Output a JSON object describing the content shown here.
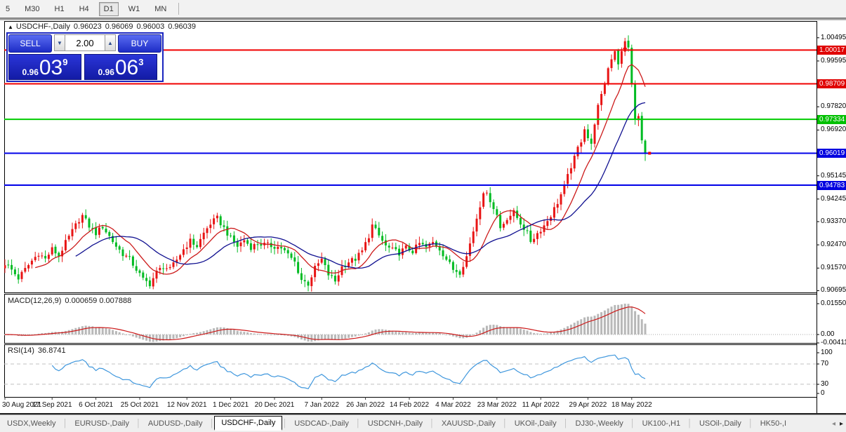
{
  "toolbar": {
    "timeframes": [
      "5",
      "M30",
      "H1",
      "H4",
      "D1",
      "W1",
      "MN"
    ],
    "active": "D1"
  },
  "chart": {
    "header": {
      "collapse_glyph": "▲",
      "title": "USDCHF-,Daily",
      "open": "0.96023",
      "high": "0.96069",
      "low": "0.96003",
      "close": "0.96039"
    },
    "trade_panel": {
      "sell_label": "SELL",
      "buy_label": "BUY",
      "volume": "2.00",
      "volume_down_glyph": "▼",
      "volume_up_glyph": "▲",
      "sell_price": {
        "prefix": "0.96",
        "big": "03",
        "sup": "9"
      },
      "buy_price": {
        "prefix": "0.96",
        "big": "06",
        "sup": "3"
      }
    }
  },
  "chart_data": {
    "type": "candlestick",
    "symbol": "USDCHF-",
    "timeframe": "Daily",
    "bar_count": 191,
    "up_color": "#e81414",
    "down_color": "#00bb22",
    "price_axis_ticks": [
      "1.00495",
      "0.99595",
      "0.97820",
      "0.96920",
      "0.95145",
      "0.94245",
      "0.93370",
      "0.92470",
      "0.91570",
      "0.90695"
    ],
    "price_badges": [
      {
        "value": "1.00017",
        "price": 1.00017,
        "color": "#e00000"
      },
      {
        "value": "0.98709",
        "price": 0.98709,
        "color": "#e00000"
      },
      {
        "value": "0.97334",
        "price": 0.97334,
        "color": "#00c000"
      },
      {
        "value": "0.96019",
        "price": 0.96019,
        "color": "#0000e0"
      },
      {
        "value": "0.94783",
        "price": 0.94783,
        "color": "#0000e0"
      }
    ],
    "hlines": [
      {
        "price": 1.00017,
        "color": "#f00000"
      },
      {
        "price": 0.98709,
        "color": "#f00000"
      },
      {
        "price": 0.97334,
        "color": "#00cc00"
      },
      {
        "price": 0.96019,
        "color": "#0000e8"
      },
      {
        "price": 0.94783,
        "color": "#0000e8"
      }
    ],
    "ma_fast": {
      "period": 10,
      "color": "#cc1a1a"
    },
    "ma_slow": {
      "period": 22,
      "color": "#101090"
    },
    "close_anchors": [
      [
        0,
        0.9175
      ],
      [
        2,
        0.915
      ],
      [
        4,
        0.9118
      ],
      [
        6,
        0.9152
      ],
      [
        8,
        0.9185
      ],
      [
        10,
        0.9215
      ],
      [
        12,
        0.9192
      ],
      [
        14,
        0.923
      ],
      [
        16,
        0.9205
      ],
      [
        18,
        0.9255
      ],
      [
        20,
        0.93
      ],
      [
        22,
        0.9345
      ],
      [
        23,
        0.936
      ],
      [
        25,
        0.932
      ],
      [
        27,
        0.9292
      ],
      [
        29,
        0.9318
      ],
      [
        31,
        0.928
      ],
      [
        33,
        0.9242
      ],
      [
        35,
        0.9212
      ],
      [
        37,
        0.9192
      ],
      [
        39,
        0.9152
      ],
      [
        41,
        0.9112
      ],
      [
        43,
        0.9096
      ],
      [
        45,
        0.914
      ],
      [
        47,
        0.9165
      ],
      [
        49,
        0.915
      ],
      [
        51,
        0.919
      ],
      [
        53,
        0.923
      ],
      [
        55,
        0.9262
      ],
      [
        57,
        0.9242
      ],
      [
        59,
        0.9292
      ],
      [
        61,
        0.933
      ],
      [
        63,
        0.935
      ],
      [
        65,
        0.9312
      ],
      [
        67,
        0.9272
      ],
      [
        69,
        0.9242
      ],
      [
        71,
        0.9266
      ],
      [
        73,
        0.9238
      ],
      [
        75,
        0.9252
      ],
      [
        78,
        0.9246
      ],
      [
        82,
        0.9236
      ],
      [
        86,
        0.918
      ],
      [
        88,
        0.9112
      ],
      [
        90,
        0.9096
      ],
      [
        92,
        0.9156
      ],
      [
        94,
        0.919
      ],
      [
        96,
        0.9132
      ],
      [
        98,
        0.9106
      ],
      [
        100,
        0.9162
      ],
      [
        102,
        0.9182
      ],
      [
        104,
        0.9192
      ],
      [
        106,
        0.9222
      ],
      [
        108,
        0.9282
      ],
      [
        109,
        0.9322
      ],
      [
        111,
        0.9282
      ],
      [
        113,
        0.9242
      ],
      [
        115,
        0.9226
      ],
      [
        117,
        0.9216
      ],
      [
        119,
        0.9236
      ],
      [
        121,
        0.9222
      ],
      [
        123,
        0.9252
      ],
      [
        125,
        0.9236
      ],
      [
        127,
        0.9256
      ],
      [
        129,
        0.9232
      ],
      [
        131,
        0.9192
      ],
      [
        133,
        0.9152
      ],
      [
        135,
        0.9142
      ],
      [
        137,
        0.9202
      ],
      [
        139,
        0.9302
      ],
      [
        141,
        0.9402
      ],
      [
        142,
        0.9456
      ],
      [
        144,
        0.9422
      ],
      [
        146,
        0.9362
      ],
      [
        147,
        0.9312
      ],
      [
        149,
        0.9352
      ],
      [
        151,
        0.9372
      ],
      [
        153,
        0.9332
      ],
      [
        155,
        0.9292
      ],
      [
        156,
        0.9262
      ],
      [
        158,
        0.9292
      ],
      [
        160,
        0.9322
      ],
      [
        162,
        0.9362
      ],
      [
        164,
        0.9412
      ],
      [
        166,
        0.9472
      ],
      [
        167,
        0.9512
      ],
      [
        168,
        0.9552
      ],
      [
        169,
        0.9582
      ],
      [
        170,
        0.9622
      ],
      [
        171,
        0.9652
      ],
      [
        172,
        0.9702
      ],
      [
        173,
        0.9662
      ],
      [
        174,
        0.9632
      ],
      [
        175,
        0.9722
      ],
      [
        176,
        0.9782
      ],
      [
        177,
        0.9822
      ],
      [
        178,
        0.9872
      ],
      [
        179,
        0.9932
      ],
      [
        180,
        0.9972
      ],
      [
        181,
        1.0002
      ],
      [
        182,
        0.9952
      ],
      [
        183,
        0.9992
      ],
      [
        184,
        1.0036
      ],
      [
        185,
        1.0012
      ],
      [
        186,
        0.9872
      ],
      [
        187,
        0.9732
      ],
      [
        188,
        0.9746
      ],
      [
        189,
        0.9652
      ],
      [
        190,
        0.9604
      ]
    ],
    "x_labels": [
      {
        "label": "30 Aug 2021",
        "bar": 0
      },
      {
        "label": "17 Sep 2021",
        "bar": 14
      },
      {
        "label": "6 Oct 2021",
        "bar": 27
      },
      {
        "label": "25 Oct 2021",
        "bar": 40
      },
      {
        "label": "12 Nov 2021",
        "bar": 54
      },
      {
        "label": "1 Dec 2021",
        "bar": 67
      },
      {
        "label": "20 Dec 2021",
        "bar": 80
      },
      {
        "label": "7 Jan 2022",
        "bar": 94
      },
      {
        "label": "26 Jan 2022",
        "bar": 107
      },
      {
        "label": "14 Feb 2022",
        "bar": 120
      },
      {
        "label": "4 Mar 2022",
        "bar": 133
      },
      {
        "label": "23 Mar 2022",
        "bar": 146
      },
      {
        "label": "11 Apr 2022",
        "bar": 159
      },
      {
        "label": "29 Apr 2022",
        "bar": 173
      },
      {
        "label": "18 May 2022",
        "bar": 186
      }
    ],
    "macd": {
      "label": "MACD(12,26,9)",
      "values": "0.000659 0.007888",
      "params": [
        12,
        26,
        9
      ],
      "axis": [
        "0.01550",
        "0.00",
        "-0.00411"
      ],
      "hist_color": "#b8b8b8",
      "signal_color": "#cc1a1a"
    },
    "rsi": {
      "label": "RSI(14)",
      "value": "36.8741",
      "period": 14,
      "axis": [
        "100",
        "70",
        "30",
        "0"
      ],
      "levels": [
        70,
        30
      ],
      "color": "#3f97dd"
    },
    "markers": [
      {
        "bar": 184,
        "price": 1.0008,
        "type": "plus",
        "color": "#ee0000"
      },
      {
        "bar": 191.3,
        "price": 0.9602,
        "type": "tick",
        "color": "#ee0000"
      }
    ]
  },
  "tab_bar": {
    "tabs": [
      "USDX,Weekly",
      "EURUSD-,Daily",
      "AUDUSD-,Daily",
      "USDCHF-,Daily",
      "USDCAD-,Daily",
      "USDCNH-,Daily",
      "XAUUSD-,Daily",
      "UKOil-,Daily",
      "DJ30-,Weekly",
      "UK100-,H1",
      "USOil-,Daily",
      "HK50-,I"
    ],
    "active": "USDCHF-,Daily",
    "scroll_left_glyph": "◂",
    "scroll_right_glyph": "▸"
  }
}
